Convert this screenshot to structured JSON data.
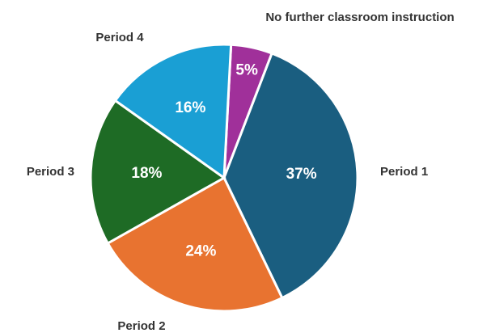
{
  "chart_data": {
    "type": "pie",
    "categories": [
      "No further classroom instruction",
      "Period 1",
      "Period 2",
      "Period 3",
      "Period 4"
    ],
    "values": [
      5,
      37,
      24,
      18,
      16
    ],
    "value_labels": [
      "5%",
      "37%",
      "24%",
      "18%",
      "16%"
    ],
    "colors": [
      "#a0309a",
      "#1a5e80",
      "#e87330",
      "#1e6b25",
      "#1a9fd4"
    ]
  }
}
